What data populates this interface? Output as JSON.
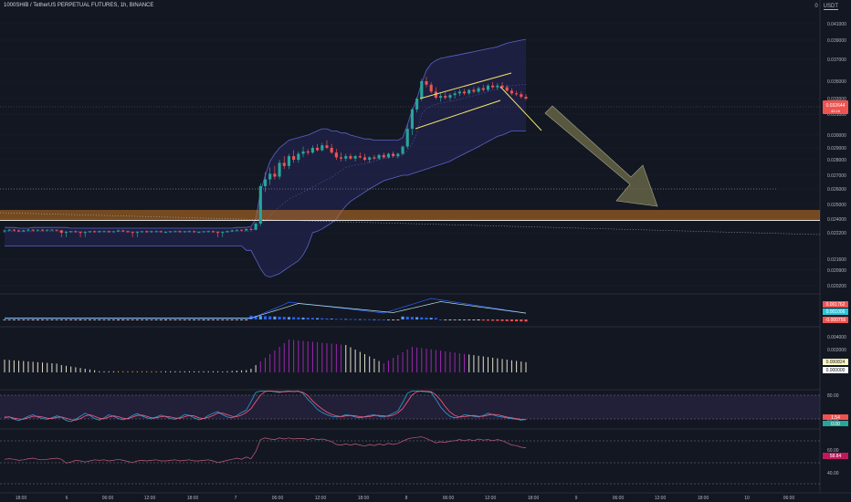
{
  "header": {
    "symbol_line": "1000SHIB / TetherUS PERPETUAL FUTURES, 1h, BINANCE",
    "zero": "0",
    "currency": "USDT"
  },
  "colors": {
    "background": "#131722",
    "up": "#26a69a",
    "down": "#ef5350",
    "band_fill": "#2a2a66",
    "band_line": "#5b63c7",
    "zone": "#c77421",
    "channel": "#f0e36a",
    "arrow": "#6f6f4a",
    "macd_line": "#2962ff",
    "signal_line": "#ff6d00",
    "stoch_k": "#2aa0d8",
    "stoch_d": "#ff5c7a",
    "rsi": "#c15e7c"
  },
  "chart_data": [
    {
      "type": "candlestick",
      "title": "1000SHIB / TetherUS PERPETUAL FUTURES, 1h, BINANCE",
      "y_axis_labels": [
        "0.041000",
        "0.039000",
        "0.037000",
        "0.035000",
        "0.033000",
        "0.031000",
        "0.030000",
        "0.029000",
        "0.028000",
        "0.027000",
        "0.026000",
        "0.025000",
        "0.024000",
        "0.022200",
        "0.021600",
        "0.020900",
        "0.020200"
      ],
      "last_price": "0.032644",
      "last_price_sub": "42:16",
      "x_axis_labels": [
        "18:00",
        "6",
        "06:00",
        "12:00",
        "18:00",
        "7",
        "06:00",
        "12:00",
        "18:00",
        "8",
        "06:00",
        "12:00",
        "18:00",
        "9",
        "06:00",
        "12:00",
        "18:00",
        "10",
        "06:00"
      ],
      "candles_ohlc": [
        [
          0.0224,
          0.0226,
          0.0222,
          0.0225
        ],
        [
          0.0225,
          0.0227,
          0.0224,
          0.0226
        ],
        [
          0.0226,
          0.0227,
          0.0224,
          0.0225
        ],
        [
          0.0225,
          0.0226,
          0.0223,
          0.0224
        ],
        [
          0.0224,
          0.0226,
          0.0223,
          0.0225
        ],
        [
          0.0225,
          0.0227,
          0.0224,
          0.0226
        ],
        [
          0.0226,
          0.0227,
          0.0224,
          0.0225
        ],
        [
          0.0225,
          0.0226,
          0.0224,
          0.0226
        ],
        [
          0.0226,
          0.0227,
          0.0224,
          0.0225
        ],
        [
          0.0225,
          0.0226,
          0.0224,
          0.0226
        ],
        [
          0.0226,
          0.0227,
          0.0225,
          0.0226
        ],
        [
          0.0226,
          0.0226,
          0.0224,
          0.0225
        ],
        [
          0.0225,
          0.0226,
          0.0221,
          0.0222
        ],
        [
          0.0222,
          0.0224,
          0.0221,
          0.0223
        ],
        [
          0.0223,
          0.0224,
          0.0222,
          0.0224
        ],
        [
          0.0224,
          0.0225,
          0.0222,
          0.0223
        ],
        [
          0.0223,
          0.0224,
          0.0221,
          0.0222
        ],
        [
          0.0222,
          0.0224,
          0.0221,
          0.0223
        ],
        [
          0.0223,
          0.0224,
          0.0222,
          0.0224
        ],
        [
          0.0224,
          0.0225,
          0.0222,
          0.0223
        ],
        [
          0.0223,
          0.0225,
          0.0222,
          0.0224
        ],
        [
          0.0224,
          0.0225,
          0.0223,
          0.0224
        ],
        [
          0.0224,
          0.0225,
          0.0222,
          0.0223
        ],
        [
          0.0223,
          0.0224,
          0.0222,
          0.0224
        ],
        [
          0.0224,
          0.0226,
          0.0223,
          0.0225
        ],
        [
          0.0225,
          0.0226,
          0.0223,
          0.0224
        ],
        [
          0.0224,
          0.0225,
          0.0222,
          0.0223
        ],
        [
          0.0223,
          0.0224,
          0.0221,
          0.0222
        ],
        [
          0.0222,
          0.0224,
          0.0221,
          0.0223
        ],
        [
          0.0223,
          0.0224,
          0.0222,
          0.0224
        ],
        [
          0.0224,
          0.0225,
          0.0222,
          0.0223
        ],
        [
          0.0223,
          0.0225,
          0.0222,
          0.0224
        ],
        [
          0.0224,
          0.0225,
          0.0223,
          0.0224
        ],
        [
          0.0224,
          0.0225,
          0.0222,
          0.0223
        ],
        [
          0.0223,
          0.0224,
          0.0222,
          0.0223
        ],
        [
          0.0223,
          0.0224,
          0.0222,
          0.0224
        ],
        [
          0.0224,
          0.0225,
          0.0223,
          0.0224
        ],
        [
          0.0224,
          0.0225,
          0.0222,
          0.0223
        ],
        [
          0.0223,
          0.0224,
          0.0222,
          0.0224
        ],
        [
          0.0224,
          0.0225,
          0.0223,
          0.0224
        ],
        [
          0.0224,
          0.0225,
          0.0222,
          0.0223
        ],
        [
          0.0223,
          0.0224,
          0.0222,
          0.0223
        ],
        [
          0.0223,
          0.0224,
          0.0222,
          0.0224
        ],
        [
          0.0224,
          0.0225,
          0.0223,
          0.0224
        ],
        [
          0.0224,
          0.0225,
          0.0222,
          0.0223
        ],
        [
          0.0223,
          0.0224,
          0.0221,
          0.0222
        ],
        [
          0.0222,
          0.0224,
          0.0221,
          0.0223
        ],
        [
          0.0223,
          0.0225,
          0.0222,
          0.0224
        ],
        [
          0.0224,
          0.0226,
          0.0223,
          0.0225
        ],
        [
          0.0225,
          0.0226,
          0.0224,
          0.0226
        ],
        [
          0.0226,
          0.0226,
          0.0224,
          0.0225
        ],
        [
          0.0225,
          0.0227,
          0.0224,
          0.0227
        ],
        [
          0.0227,
          0.0229,
          0.0225,
          0.0226
        ],
        [
          0.0226,
          0.0236,
          0.0225,
          0.0234
        ],
        [
          0.0234,
          0.0264,
          0.0231,
          0.0262
        ],
        [
          0.0262,
          0.0272,
          0.0258,
          0.0267
        ],
        [
          0.0267,
          0.0275,
          0.0263,
          0.0271
        ],
        [
          0.0271,
          0.0276,
          0.0267,
          0.0269
        ],
        [
          0.0269,
          0.028,
          0.0267,
          0.0278
        ],
        [
          0.0278,
          0.0283,
          0.0274,
          0.0276
        ],
        [
          0.0276,
          0.0285,
          0.0274,
          0.0283
        ],
        [
          0.0283,
          0.0288,
          0.0278,
          0.028
        ],
        [
          0.028,
          0.0287,
          0.0278,
          0.0285
        ],
        [
          0.0285,
          0.0291,
          0.0282,
          0.0287
        ],
        [
          0.0287,
          0.0289,
          0.0284,
          0.0286
        ],
        [
          0.0286,
          0.0292,
          0.0285,
          0.029
        ],
        [
          0.029,
          0.0293,
          0.0287,
          0.0288
        ],
        [
          0.0288,
          0.0294,
          0.0287,
          0.0292
        ],
        [
          0.0292,
          0.0296,
          0.0289,
          0.029
        ],
        [
          0.029,
          0.0293,
          0.0285,
          0.0286
        ],
        [
          0.0286,
          0.0289,
          0.028,
          0.0282
        ],
        [
          0.0282,
          0.0286,
          0.0279,
          0.0281
        ],
        [
          0.0281,
          0.0285,
          0.0279,
          0.0283
        ],
        [
          0.0283,
          0.0285,
          0.028,
          0.0281
        ],
        [
          0.0281,
          0.0284,
          0.0279,
          0.0283
        ],
        [
          0.0283,
          0.0286,
          0.0281,
          0.0282
        ],
        [
          0.0282,
          0.0285,
          0.0279,
          0.028
        ],
        [
          0.028,
          0.0283,
          0.0278,
          0.0282
        ],
        [
          0.0282,
          0.0284,
          0.028,
          0.0281
        ],
        [
          0.0281,
          0.0285,
          0.028,
          0.0284
        ],
        [
          0.0284,
          0.0286,
          0.0281,
          0.0282
        ],
        [
          0.0282,
          0.0286,
          0.0281,
          0.0285
        ],
        [
          0.0285,
          0.0287,
          0.0282,
          0.0283
        ],
        [
          0.0283,
          0.0286,
          0.0281,
          0.0285
        ],
        [
          0.0285,
          0.0292,
          0.0284,
          0.0291
        ],
        [
          0.0291,
          0.0305,
          0.0289,
          0.0303
        ],
        [
          0.0303,
          0.0318,
          0.03,
          0.0316
        ],
        [
          0.0316,
          0.0332,
          0.0312,
          0.033
        ],
        [
          0.033,
          0.0352,
          0.0327,
          0.035
        ],
        [
          0.035,
          0.0354,
          0.0343,
          0.0346
        ],
        [
          0.0346,
          0.0349,
          0.0336,
          0.0338
        ],
        [
          0.0338,
          0.0343,
          0.0329,
          0.0331
        ],
        [
          0.0331,
          0.0336,
          0.0326,
          0.0333
        ],
        [
          0.0333,
          0.0337,
          0.0329,
          0.0331
        ],
        [
          0.0331,
          0.0336,
          0.0327,
          0.0334
        ],
        [
          0.0334,
          0.0339,
          0.033,
          0.0336
        ],
        [
          0.0336,
          0.0341,
          0.0333,
          0.0338
        ],
        [
          0.0338,
          0.0341,
          0.0334,
          0.0336
        ],
        [
          0.0336,
          0.0341,
          0.0334,
          0.034
        ],
        [
          0.034,
          0.0343,
          0.0336,
          0.0338
        ],
        [
          0.0338,
          0.0344,
          0.0336,
          0.0342
        ],
        [
          0.0342,
          0.0346,
          0.0338,
          0.034
        ],
        [
          0.034,
          0.0347,
          0.0338,
          0.0345
        ],
        [
          0.0345,
          0.0349,
          0.0341,
          0.0343
        ],
        [
          0.0343,
          0.0348,
          0.034,
          0.0345
        ],
        [
          0.0345,
          0.0349,
          0.0342,
          0.0343
        ],
        [
          0.0343,
          0.0346,
          0.0338,
          0.0339
        ],
        [
          0.0339,
          0.0342,
          0.0334,
          0.0336
        ],
        [
          0.0336,
          0.0339,
          0.0333,
          0.0335
        ],
        [
          0.0335,
          0.0338,
          0.033,
          0.0332
        ],
        [
          0.0332,
          0.0335,
          0.0328,
          0.033
        ]
      ],
      "bollinger_upper": [
        0.0229,
        0.0229,
        0.0229,
        0.0228,
        0.0228,
        0.0228,
        0.0229,
        0.0229,
        0.0229,
        0.0229,
        0.0229,
        0.0229,
        0.0229,
        0.0229,
        0.0228,
        0.0228,
        0.0228,
        0.0228,
        0.0228,
        0.0228,
        0.0228,
        0.0228,
        0.0228,
        0.0228,
        0.0228,
        0.0228,
        0.0228,
        0.0228,
        0.0228,
        0.0228,
        0.0228,
        0.0228,
        0.0228,
        0.0228,
        0.0228,
        0.0228,
        0.0228,
        0.0228,
        0.0228,
        0.0228,
        0.0228,
        0.0228,
        0.0228,
        0.0228,
        0.0228,
        0.0228,
        0.0228,
        0.0228,
        0.0228,
        0.0229,
        0.0229,
        0.0229,
        0.023,
        0.024,
        0.0258,
        0.027,
        0.0279,
        0.0285,
        0.029,
        0.0293,
        0.0296,
        0.0297,
        0.0298,
        0.0299,
        0.03,
        0.0301,
        0.0302,
        0.0303,
        0.0303,
        0.0302,
        0.0302,
        0.0301,
        0.0301,
        0.03,
        0.0299,
        0.0298,
        0.0297,
        0.0297,
        0.0296,
        0.0296,
        0.0296,
        0.0296,
        0.0296,
        0.0296,
        0.0298,
        0.0305,
        0.0315,
        0.033,
        0.0348,
        0.036,
        0.0366,
        0.0369,
        0.0371,
        0.0372,
        0.0373,
        0.0374,
        0.0375,
        0.0376,
        0.0377,
        0.0378,
        0.0379,
        0.038,
        0.0381,
        0.0382,
        0.0383,
        0.0385,
        0.0387,
        0.0388,
        0.0389,
        0.039,
        0.0391
      ],
      "bollinger_lower": [
        0.0219,
        0.0219,
        0.0219,
        0.0219,
        0.0219,
        0.0219,
        0.0219,
        0.0219,
        0.0219,
        0.0219,
        0.0219,
        0.0219,
        0.0219,
        0.0219,
        0.0219,
        0.0219,
        0.0219,
        0.0219,
        0.0219,
        0.0219,
        0.0219,
        0.0219,
        0.0219,
        0.0219,
        0.0219,
        0.0219,
        0.0219,
        0.0219,
        0.0219,
        0.0219,
        0.0219,
        0.0219,
        0.0219,
        0.0219,
        0.0219,
        0.0219,
        0.0219,
        0.0219,
        0.0219,
        0.0219,
        0.0219,
        0.0219,
        0.0219,
        0.0219,
        0.0219,
        0.0219,
        0.0219,
        0.0219,
        0.0219,
        0.0219,
        0.0219,
        0.0218,
        0.0218,
        0.0216,
        0.021,
        0.0206,
        0.0205,
        0.0206,
        0.0207,
        0.0209,
        0.0211,
        0.0213,
        0.0215,
        0.0217,
        0.0219,
        0.0222,
        0.0224,
        0.0227,
        0.0231,
        0.0235,
        0.024,
        0.0245,
        0.0249,
        0.0252,
        0.0254,
        0.0256,
        0.0258,
        0.026,
        0.0262,
        0.0264,
        0.0266,
        0.0267,
        0.0268,
        0.0269,
        0.027,
        0.027,
        0.0271,
        0.0272,
        0.0273,
        0.0274,
        0.0275,
        0.0276,
        0.0277,
        0.0278,
        0.0279,
        0.0281,
        0.0283,
        0.0285,
        0.0287,
        0.0289,
        0.0291,
        0.0293,
        0.0295,
        0.0297,
        0.0299,
        0.03,
        0.0301,
        0.0302,
        0.0302,
        0.0302,
        0.0302
      ]
    },
    {
      "type": "bar",
      "title": "MACD",
      "values_labels": [
        "0.001762",
        "0.001006",
        "-0.000756"
      ]
    },
    {
      "type": "bar",
      "title": "Oscillator",
      "values_labels": [
        "0.004000",
        "0.002000",
        "0.000824",
        "0.000000"
      ]
    },
    {
      "type": "line",
      "title": "Stochastic",
      "y_axis_labels": [
        "80.00",
        "20.00"
      ],
      "values_labels": [
        "1.54",
        "0.00"
      ],
      "k_values": [
        22,
        25,
        18,
        15,
        20,
        26,
        30,
        24,
        20,
        18,
        22,
        27,
        24,
        15,
        12,
        18,
        26,
        34,
        28,
        20,
        16,
        22,
        30,
        26,
        20,
        17,
        21,
        28,
        33,
        27,
        22,
        19,
        24,
        29,
        25,
        20,
        18,
        23,
        31,
        28,
        22,
        17,
        20,
        28,
        34,
        38,
        30,
        24,
        22,
        28,
        36,
        42,
        64,
        88,
        92,
        91,
        92,
        90,
        88,
        91,
        92,
        90,
        92,
        85,
        70,
        58,
        44,
        36,
        30,
        26,
        24,
        26,
        30,
        28,
        24,
        22,
        25,
        28,
        30,
        26,
        24,
        28,
        34,
        40,
        62,
        86,
        92,
        92,
        91,
        90,
        88,
        70,
        50,
        36,
        26,
        22,
        24,
        30,
        28,
        26,
        24,
        28,
        34,
        30,
        26,
        24,
        22,
        20,
        18,
        16,
        18
      ],
      "d_values": [
        24,
        24,
        21,
        19,
        18,
        22,
        26,
        26,
        24,
        21,
        20,
        23,
        24,
        21,
        17,
        16,
        20,
        27,
        30,
        26,
        21,
        19,
        24,
        27,
        25,
        21,
        19,
        24,
        28,
        29,
        26,
        22,
        22,
        25,
        26,
        24,
        21,
        21,
        25,
        28,
        27,
        22,
        20,
        23,
        28,
        34,
        34,
        30,
        26,
        25,
        29,
        36,
        46,
        64,
        81,
        91,
        92,
        91,
        90,
        90,
        91,
        91,
        91,
        88,
        80,
        66,
        55,
        45,
        37,
        31,
        27,
        25,
        27,
        28,
        27,
        25,
        24,
        25,
        28,
        28,
        27,
        26,
        29,
        35,
        46,
        64,
        82,
        90,
        92,
        91,
        90,
        82,
        68,
        51,
        37,
        28,
        24,
        25,
        27,
        28,
        26,
        26,
        29,
        31,
        30,
        27,
        24,
        22,
        20,
        18,
        17
      ]
    },
    {
      "type": "line",
      "title": "RSI",
      "y_axis_labels": [
        "60.00",
        "40.00"
      ],
      "values_labels": [
        "58.84"
      ],
      "values": [
        48,
        49,
        48,
        46,
        47,
        49,
        50,
        48,
        47,
        48,
        49,
        50,
        48,
        41,
        43,
        46,
        45,
        43,
        45,
        47,
        46,
        47,
        45,
        46,
        48,
        46,
        44,
        42,
        45,
        46,
        45,
        46,
        47,
        45,
        45,
        46,
        47,
        45,
        46,
        47,
        45,
        45,
        46,
        47,
        45,
        42,
        44,
        46,
        48,
        50,
        48,
        52,
        49,
        62,
        84,
        87,
        85,
        84,
        87,
        85,
        87,
        85,
        86,
        86,
        84,
        86,
        84,
        85,
        83,
        80,
        75,
        74,
        76,
        74,
        76,
        74,
        72,
        75,
        73,
        76,
        74,
        77,
        75,
        77,
        81,
        85,
        87,
        88,
        89,
        86,
        82,
        78,
        80,
        79,
        81,
        82,
        84,
        82,
        84,
        82,
        85,
        83,
        84,
        82,
        84,
        82,
        78,
        74,
        73,
        70,
        69
      ]
    }
  ]
}
